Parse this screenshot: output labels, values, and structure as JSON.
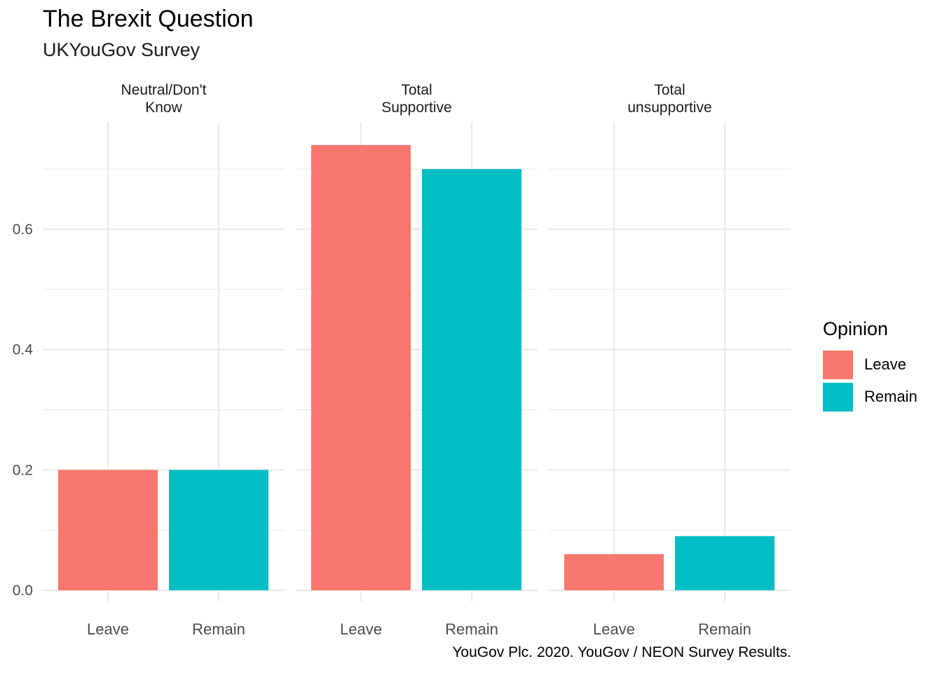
{
  "chart_data": {
    "type": "bar",
    "title": "The Brexit Question",
    "subtitle": "UKYouGov Survey",
    "caption": "YouGov Plc. 2020. YouGov / NEON Survey Results.",
    "legend": {
      "title": "Opinion",
      "placement": "right",
      "entries": [
        {
          "name": "Leave",
          "color": "#F8766D"
        },
        {
          "name": "Remain",
          "color": "#00BFC4"
        }
      ]
    },
    "categories": [
      "Leave",
      "Remain"
    ],
    "ylim": [
      0,
      0.75
    ],
    "yticks": [
      0.0,
      0.2,
      0.4,
      0.6
    ],
    "ytick_labels": [
      "0.0",
      "0.2",
      "0.4",
      "0.6"
    ],
    "grid": true,
    "facets": [
      {
        "label": "Neutral/Don't\nKnow",
        "values": [
          0.2,
          0.2
        ]
      },
      {
        "label": "Total\nSupportive",
        "values": [
          0.74,
          0.7
        ]
      },
      {
        "label": "Total\nunsupportive",
        "values": [
          0.06,
          0.09
        ]
      }
    ]
  }
}
